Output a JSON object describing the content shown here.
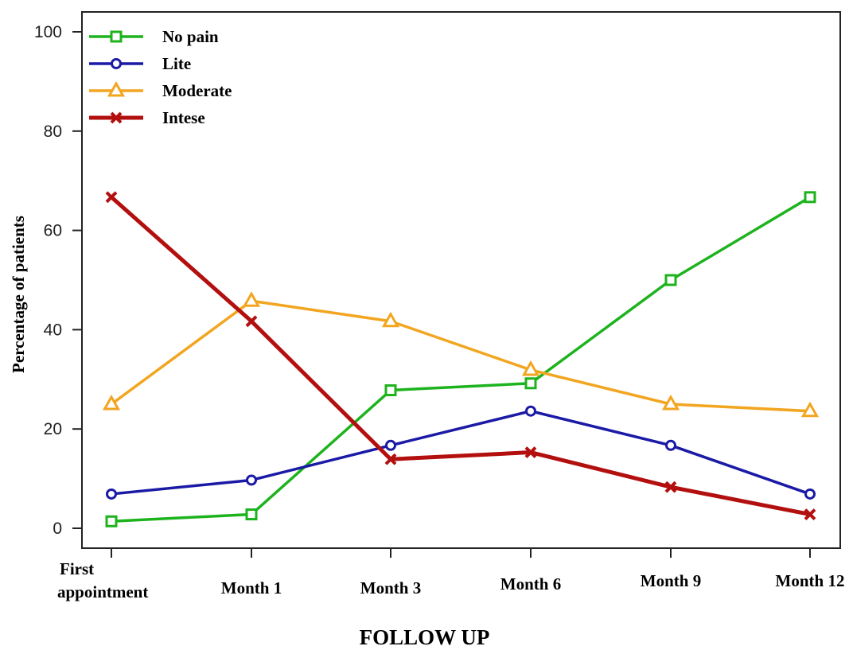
{
  "chart_data": {
    "type": "line",
    "title": "",
    "xlabel": "FOLLOW UP",
    "ylabel": "Percentage of patients",
    "categories": [
      [
        "First",
        "appointment"
      ],
      [
        "Month 1"
      ],
      [
        "Month 3"
      ],
      [
        "Month 6"
      ],
      [
        "Month 9"
      ],
      [
        "Month 12"
      ]
    ],
    "ylim": [
      0,
      100
    ],
    "yticks": [
      0,
      20,
      40,
      60,
      80,
      100
    ],
    "grid": false,
    "legend_position": "top-left",
    "series": [
      {
        "name": "No pain",
        "color": "#1db31d",
        "marker": "square",
        "values": [
          1.4,
          2.8,
          27.8,
          29.2,
          50.0,
          66.7
        ]
      },
      {
        "name": "Lite",
        "color": "#1a1aa6",
        "marker": "circle",
        "values": [
          6.9,
          9.7,
          16.7,
          23.6,
          16.7,
          6.9
        ]
      },
      {
        "name": "Moderate",
        "color": "#f2a51f",
        "marker": "triangle",
        "values": [
          25.0,
          45.8,
          41.7,
          31.9,
          25.0,
          23.6
        ]
      },
      {
        "name": "Intese",
        "color": "#b30f0f",
        "marker": "cross",
        "values": [
          66.7,
          41.7,
          13.9,
          15.3,
          8.3,
          2.8
        ]
      }
    ]
  }
}
